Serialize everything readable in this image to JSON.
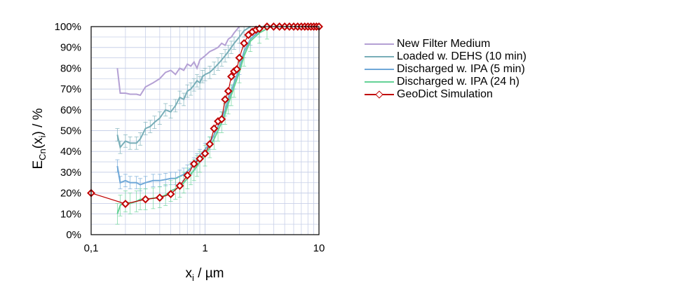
{
  "chart_data": {
    "type": "line",
    "x_scale": "log",
    "xlim": [
      0.1,
      10
    ],
    "ylim": [
      0,
      100
    ],
    "y_ticks": [
      "0%",
      "10%",
      "20%",
      "30%",
      "40%",
      "50%",
      "60%",
      "70%",
      "80%",
      "90%",
      "100%"
    ],
    "x_ticks": [
      {
        "value": 0.1,
        "label": "0,1"
      },
      {
        "value": 1,
        "label": "1"
      },
      {
        "value": 10,
        "label": "10"
      }
    ],
    "grid": "major and minor on both axes",
    "legend_position": "right",
    "series": [
      {
        "name": "New Filter Medium",
        "color": "#b4a0d4",
        "x": [
          0.17,
          0.18,
          0.2,
          0.22,
          0.25,
          0.27,
          0.3,
          0.35,
          0.4,
          0.45,
          0.5,
          0.55,
          0.6,
          0.65,
          0.7,
          0.75,
          0.8,
          0.85,
          0.9,
          1.0,
          1.1,
          1.2,
          1.3,
          1.4,
          1.5,
          1.6,
          1.7,
          1.8,
          2.0
        ],
        "values": [
          80,
          68,
          68,
          67.5,
          67.5,
          67,
          71,
          73,
          75,
          78,
          79,
          77,
          80,
          79,
          82,
          81,
          83,
          80,
          84,
          86,
          88,
          89,
          90,
          92,
          91,
          94,
          95,
          97,
          100
        ]
      },
      {
        "name": "Loaded w. DEHS (10 min)",
        "color": "#78aeb8",
        "x": [
          0.17,
          0.18,
          0.2,
          0.22,
          0.25,
          0.27,
          0.3,
          0.33,
          0.36,
          0.4,
          0.45,
          0.5,
          0.55,
          0.6,
          0.65,
          0.7,
          0.75,
          0.8,
          0.85,
          0.9,
          0.95,
          1.0,
          1.1,
          1.2,
          1.3,
          1.4,
          1.5,
          1.6,
          1.7,
          1.8,
          2.0,
          2.2,
          2.5
        ],
        "values": [
          48,
          42,
          45,
          44,
          44,
          46,
          51,
          52,
          54,
          56,
          60,
          59,
          62,
          66,
          65,
          69,
          70,
          72,
          74,
          73,
          76,
          77,
          78,
          80,
          82,
          84,
          86,
          88,
          90,
          92,
          95,
          98,
          100
        ]
      },
      {
        "name": "Discharged w. IPA (5 min)",
        "color": "#70a8d8",
        "x": [
          0.17,
          0.18,
          0.2,
          0.22,
          0.25,
          0.27,
          0.3,
          0.35,
          0.4,
          0.45,
          0.5,
          0.55,
          0.6,
          0.65,
          0.7,
          0.75,
          0.8,
          0.85,
          0.9,
          1.0,
          1.1,
          1.2,
          1.3,
          1.4,
          1.5,
          1.6,
          1.7,
          1.8,
          2.0,
          2.2,
          2.5,
          3.0
        ],
        "values": [
          33,
          25,
          26,
          25,
          25,
          24,
          25,
          26,
          26,
          26.5,
          27,
          27,
          28,
          29,
          30.5,
          32,
          34,
          36,
          38,
          41,
          44,
          48,
          52,
          56,
          60,
          65,
          69,
          73,
          80,
          88,
          94,
          98
        ]
      },
      {
        "name": "Discharged w. IPA (24 h)",
        "color": "#64d296",
        "x": [
          0.17,
          0.18,
          0.2,
          0.22,
          0.25,
          0.27,
          0.3,
          0.35,
          0.4,
          0.45,
          0.5,
          0.55,
          0.6,
          0.65,
          0.7,
          0.75,
          0.8,
          0.85,
          0.9,
          1.0,
          1.1,
          1.2,
          1.3,
          1.4,
          1.5,
          1.6,
          1.7,
          1.8,
          2.0,
          2.2,
          2.5,
          3.0,
          3.5
        ],
        "values": [
          10,
          14,
          16,
          15,
          16,
          17,
          17,
          17.5,
          18,
          19,
          21,
          22,
          23,
          25,
          27,
          29,
          31,
          33,
          35,
          38,
          42,
          46,
          50,
          54,
          58,
          63,
          67,
          71,
          78,
          86,
          93,
          97,
          99
        ]
      },
      {
        "name": "GeoDict Simulation",
        "color": "#c00000",
        "x": [
          0.1,
          0.2,
          0.3,
          0.4,
          0.5,
          0.6,
          0.7,
          0.8,
          0.9,
          1.0,
          1.1,
          1.2,
          1.3,
          1.4,
          1.5,
          1.6,
          1.7,
          1.8,
          1.9,
          2.0,
          2.2,
          2.4,
          2.6,
          2.8,
          3.0,
          3.5,
          4.0,
          4.5,
          5.0,
          5.5,
          6.0,
          6.5,
          7.0,
          7.5,
          8.0,
          8.5,
          9.0,
          9.5,
          10.0
        ],
        "values": [
          20,
          14.8,
          17,
          17.8,
          19.5,
          23.5,
          28.5,
          34,
          36.5,
          39,
          43.5,
          51,
          54.5,
          55.5,
          65,
          69,
          76,
          78.5,
          79.5,
          85,
          92,
          96,
          97.5,
          98.5,
          99,
          100,
          100,
          100,
          100,
          100,
          100,
          100,
          100,
          100,
          100,
          100,
          100,
          100,
          100
        ]
      }
    ]
  },
  "axes": {
    "y_title_main": "E",
    "y_title_sub": "Cn",
    "y_title_paren_open": "(x",
    "y_title_paren_sub": "i",
    "y_title_rest": ") / %",
    "x_title_main": "x",
    "x_title_sub": "i",
    "x_title_rest": " / µm"
  }
}
